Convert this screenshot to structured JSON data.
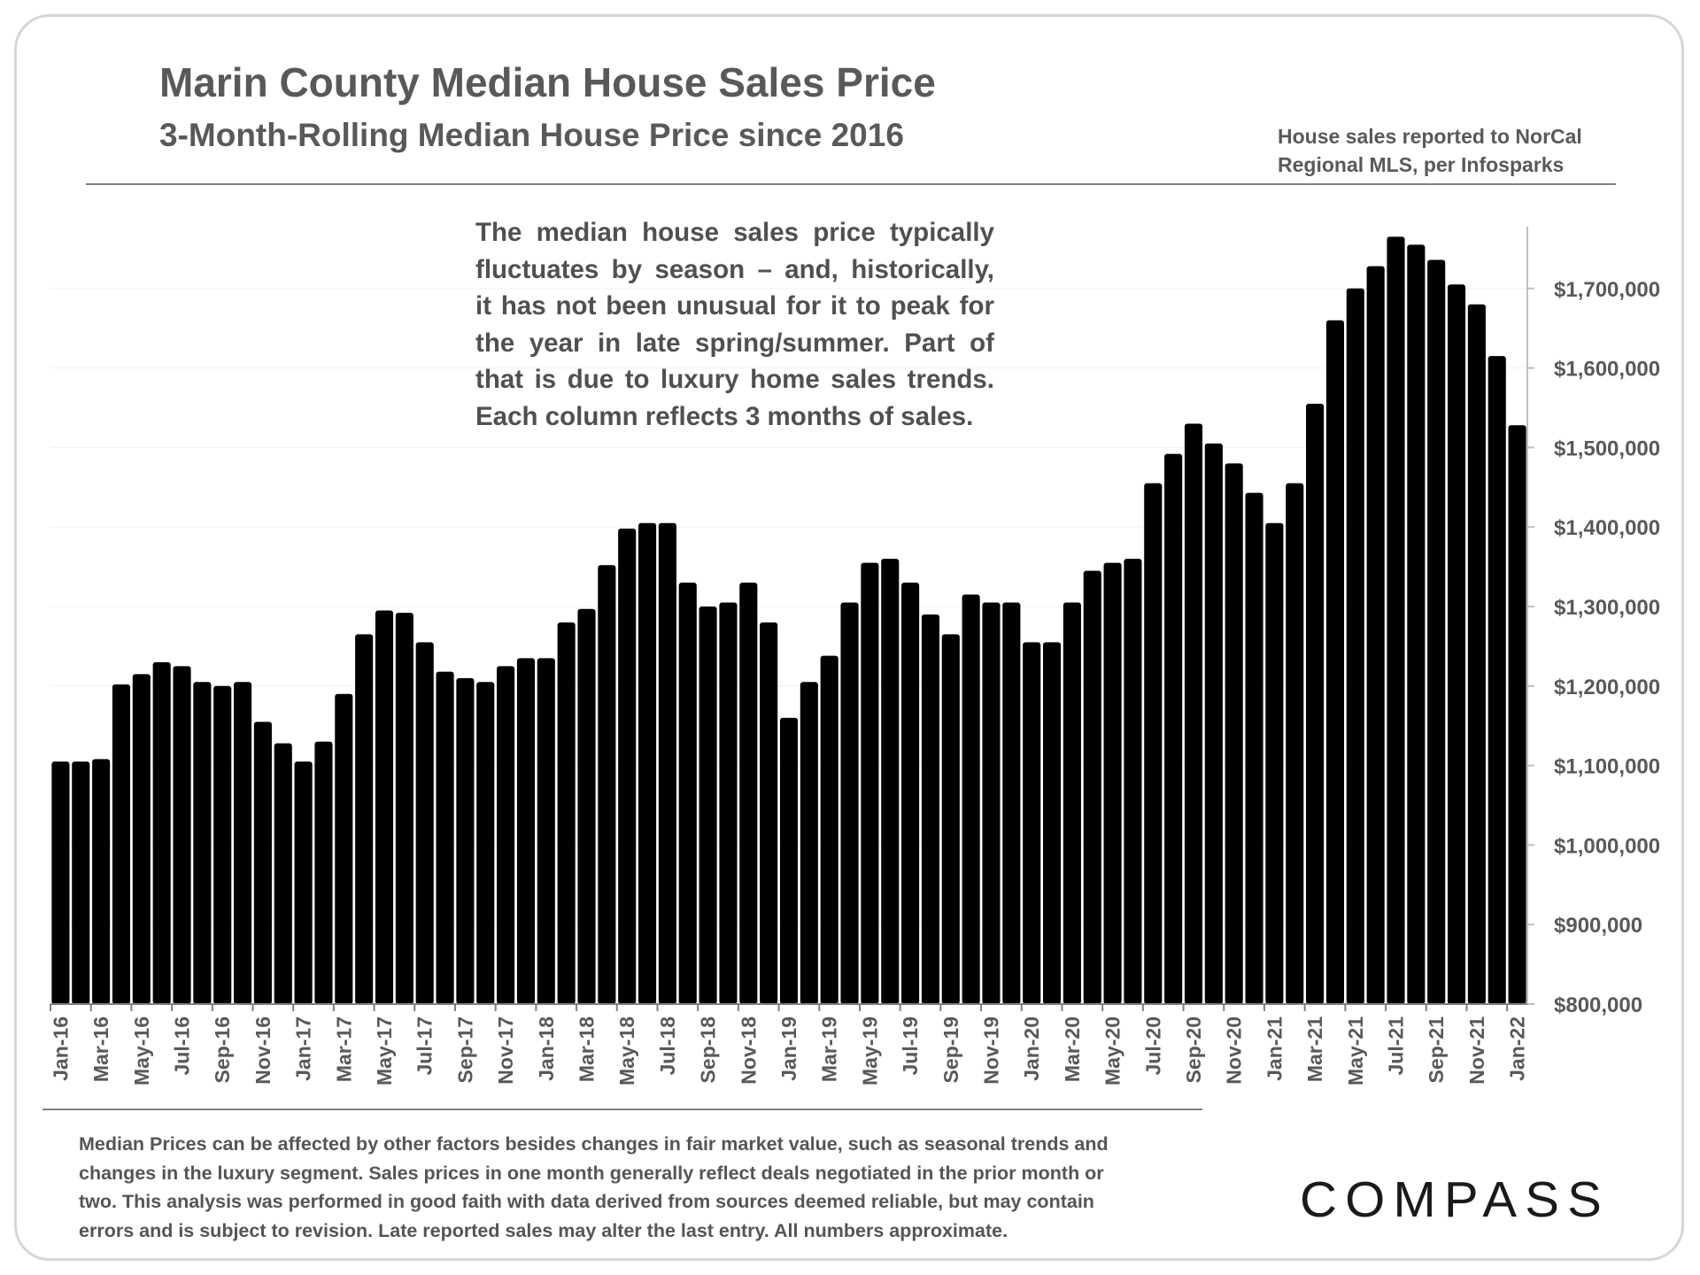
{
  "header": {
    "title": "Marin County Median House Sales Price",
    "subtitle": "3-Month-Rolling Median House Price since 2016",
    "source_lines": [
      "House sales reported to NorCal",
      "Regional MLS, per Infosparks"
    ]
  },
  "annotation_lines": [
    "The median house sales price typically",
    "fluctuates by season – and, historically,",
    "it has not been unusual for it to peak for",
    "the year in late spring/summer. Part of",
    "that is due to luxury home sales trends.",
    "Each column reflects 3 months of sales."
  ],
  "disclaimer_lines": [
    "Median Prices can be affected by other factors besides changes in fair market value, such as seasonal trends and",
    "changes in the luxury segment. Sales prices in one month generally reflect deals negotiated in the prior month or",
    "two. This analysis was performed in good faith with data derived from sources deemed reliable, but may contain",
    "errors and is subject to revision. Late reported sales may alter the last entry. All numbers approximate."
  ],
  "logo": {
    "text": "COMPASS"
  },
  "colors": {
    "bar": "#000000",
    "text": "#595959",
    "frame": "#d6d6d6",
    "rule": "#808080"
  },
  "chart_data": {
    "type": "bar",
    "title": "Marin County Median House Sales Price",
    "subtitle": "3-Month-Rolling Median House Price since 2016",
    "xlabel": "",
    "ylabel": "",
    "ylim": [
      800000,
      1800000
    ],
    "y_axis_position": "right",
    "y_ticks": [
      800000,
      900000,
      1000000,
      1100000,
      1200000,
      1300000,
      1400000,
      1500000,
      1600000,
      1700000
    ],
    "y_tick_labels": [
      "$800,000",
      "$900,000",
      "$1,000,000",
      "$1,100,000",
      "$1,200,000",
      "$1,300,000",
      "$1,400,000",
      "$1,500,000",
      "$1,600,000",
      "$1,700,000"
    ],
    "categories": [
      "Jan-16",
      "Feb-16",
      "Mar-16",
      "Apr-16",
      "May-16",
      "Jun-16",
      "Jul-16",
      "Aug-16",
      "Sep-16",
      "Oct-16",
      "Nov-16",
      "Dec-16",
      "Jan-17",
      "Feb-17",
      "Mar-17",
      "Apr-17",
      "May-17",
      "Jun-17",
      "Jul-17",
      "Aug-17",
      "Sep-17",
      "Oct-17",
      "Nov-17",
      "Dec-17",
      "Jan-18",
      "Feb-18",
      "Mar-18",
      "Apr-18",
      "May-18",
      "Jun-18",
      "Jul-18",
      "Aug-18",
      "Sep-18",
      "Oct-18",
      "Nov-18",
      "Dec-18",
      "Jan-19",
      "Feb-19",
      "Mar-19",
      "Apr-19",
      "May-19",
      "Jun-19",
      "Jul-19",
      "Aug-19",
      "Sep-19",
      "Oct-19",
      "Nov-19",
      "Dec-19",
      "Jan-20",
      "Feb-20",
      "Mar-20",
      "Apr-20",
      "May-20",
      "Jun-20",
      "Jul-20",
      "Aug-20",
      "Sep-20",
      "Oct-20",
      "Nov-20",
      "Dec-20",
      "Jan-21",
      "Feb-21",
      "Mar-21",
      "Apr-21",
      "May-21",
      "Jun-21",
      "Jul-21",
      "Aug-21",
      "Sep-21",
      "Oct-21",
      "Nov-21",
      "Dec-21",
      "Jan-22"
    ],
    "tick_labels": [
      "Jan-16",
      "Mar-16",
      "May-16",
      "Jul-16",
      "Sep-16",
      "Nov-16",
      "Jan-17",
      "Mar-17",
      "May-17",
      "Jul-17",
      "Sep-17",
      "Nov-17",
      "Jan-18",
      "Mar-18",
      "May-18",
      "Jul-18",
      "Sep-18",
      "Nov-18",
      "Jan-19",
      "Mar-19",
      "May-19",
      "Jul-19",
      "Sep-19",
      "Nov-19",
      "Jan-20",
      "Mar-20",
      "May-20",
      "Jul-20",
      "Sep-20",
      "Nov-20",
      "Jan-21",
      "Mar-21",
      "May-21",
      "Jul-21",
      "Sep-21",
      "Nov-21",
      "Jan-22"
    ],
    "values": [
      1105000,
      1105000,
      1108000,
      1202000,
      1215000,
      1230000,
      1225000,
      1205000,
      1200000,
      1205000,
      1155000,
      1128000,
      1105000,
      1130000,
      1190000,
      1265000,
      1295000,
      1292000,
      1255000,
      1218000,
      1210000,
      1205000,
      1225000,
      1235000,
      1235000,
      1280000,
      1297000,
      1352000,
      1398000,
      1405000,
      1405000,
      1330000,
      1300000,
      1305000,
      1330000,
      1280000,
      1160000,
      1205000,
      1238000,
      1305000,
      1355000,
      1360000,
      1330000,
      1290000,
      1265000,
      1315000,
      1305000,
      1305000,
      1255000,
      1255000,
      1305000,
      1345000,
      1355000,
      1360000,
      1455000,
      1492000,
      1530000,
      1505000,
      1480000,
      1443000,
      1405000,
      1455000,
      1555000,
      1660000,
      1700000,
      1728000,
      1765000,
      1755000,
      1736000,
      1705000,
      1680000,
      1615000,
      1528000
    ]
  }
}
